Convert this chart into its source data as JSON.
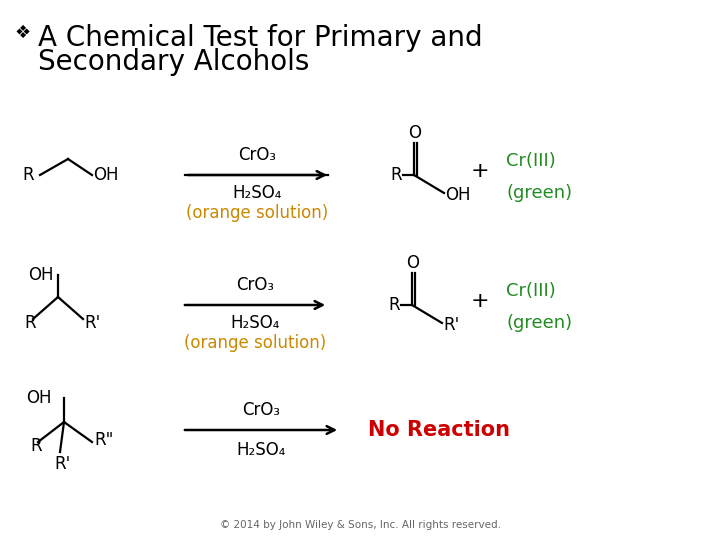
{
  "title_bullet": "❖",
  "title_line1": "A Chemical Test for Primary and",
  "title_line2": "Secondary Alcohols",
  "title_color": "#000000",
  "title_fontsize": 20,
  "bg_color": "#ffffff",
  "orange_color": "#CC8800",
  "green_color": "#228B22",
  "red_color": "#CC0000",
  "black_color": "#000000",
  "footer": "© 2014 by John Wiley & Sons, Inc. All rights reserved.",
  "footer_color": "#666666",
  "footer_fontsize": 7.5,
  "chem_fontsize": 12,
  "label_fontsize": 13
}
